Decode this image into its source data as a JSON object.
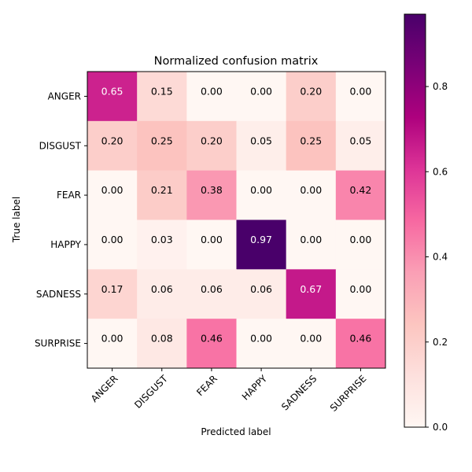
{
  "chart_data": {
    "type": "heatmap",
    "title": "Normalized confusion matrix",
    "xlabel": "Predicted label",
    "ylabel": "True label",
    "x_categories": [
      "ANGER",
      "DISGUST",
      "FEAR",
      "HAPPY",
      "SADNESS",
      "SURPRISE"
    ],
    "y_categories": [
      "ANGER",
      "DISGUST",
      "FEAR",
      "HAPPY",
      "SADNESS",
      "SURPRISE"
    ],
    "values": [
      [
        0.65,
        0.15,
        0.0,
        0.0,
        0.2,
        0.0
      ],
      [
        0.2,
        0.25,
        0.2,
        0.05,
        0.25,
        0.05
      ],
      [
        0.0,
        0.21,
        0.38,
        0.0,
        0.0,
        0.42
      ],
      [
        0.0,
        0.03,
        0.0,
        0.97,
        0.0,
        0.0
      ],
      [
        0.17,
        0.06,
        0.06,
        0.06,
        0.67,
        0.0
      ],
      [
        0.0,
        0.08,
        0.46,
        0.0,
        0.0,
        0.46
      ]
    ],
    "value_format": "0.00",
    "colormap": "RdPu",
    "colorbar": {
      "range": [
        0,
        0.97
      ],
      "ticks": [
        0.0,
        0.2,
        0.4,
        0.6,
        0.8
      ],
      "tick_labels": [
        "0.0",
        "0.2",
        "0.4",
        "0.6",
        "0.8"
      ]
    },
    "grid": false
  }
}
